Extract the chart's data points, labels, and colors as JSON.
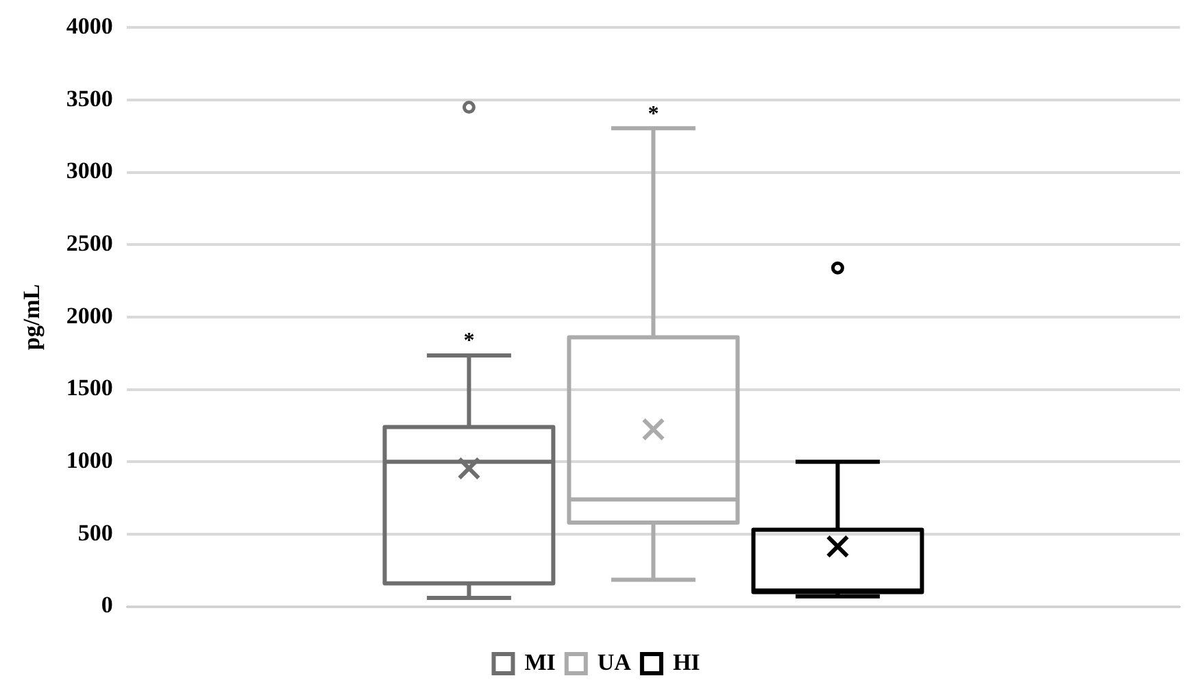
{
  "chart_data": {
    "type": "box",
    "ylabel": "pg/mL",
    "categories": [
      null
    ],
    "series": [
      {
        "name": "MI",
        "color": "#6e6e6e",
        "boxes": [
          {
            "low": 60,
            "q1": 160,
            "median": 1000,
            "q3": 1240,
            "high": 1735,
            "mean": 955,
            "outliers": [
              3450
            ]
          }
        ]
      },
      {
        "name": "UA",
        "color": "#ababab",
        "boxes": [
          {
            "low": 185,
            "q1": 580,
            "median": 740,
            "q3": 1860,
            "high": 3305,
            "mean": 1225
          }
        ]
      },
      {
        "name": "HI",
        "color": "#000000",
        "boxes": [
          {
            "low": 70,
            "q1": 100,
            "median": 110,
            "q3": 530,
            "high": 1000,
            "mean": 415,
            "outliers": [
              2340
            ]
          }
        ]
      }
    ],
    "annotations": [
      "*",
      "*"
    ],
    "ylim": [
      0,
      4000
    ],
    "yticks": [
      0,
      500,
      1000,
      1500,
      2000,
      2500,
      3000,
      3500,
      4000
    ],
    "grid": "y",
    "legend": "bottom"
  }
}
